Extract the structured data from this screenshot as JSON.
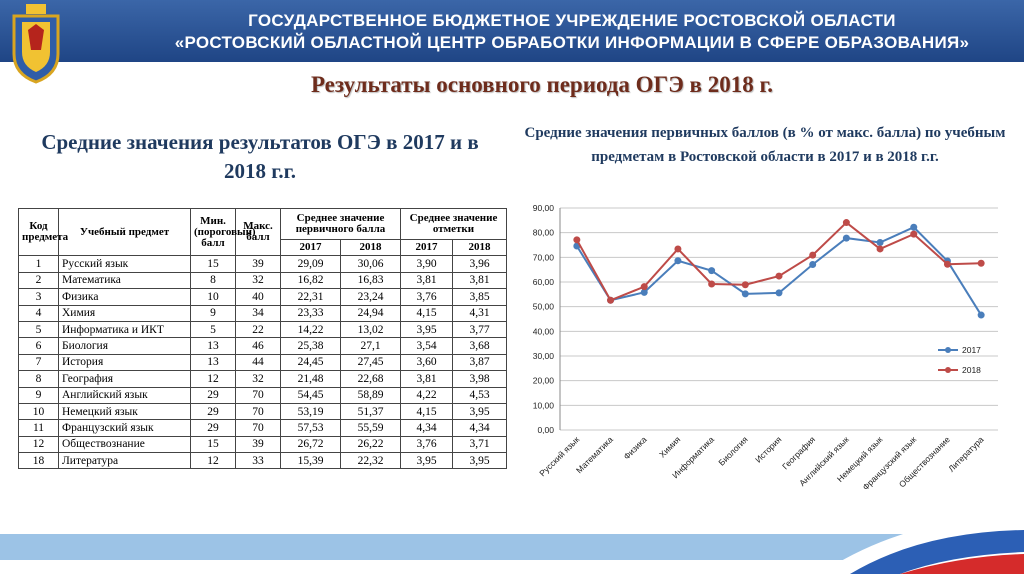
{
  "header": {
    "line1": "ГОСУДАРСТВЕННОЕ БЮДЖЕТНОЕ УЧРЕЖДЕНИЕ РОСТОВСКОЙ ОБЛАСТИ",
    "line2": "«РОСТОВСКИЙ ОБЛАСТНОЙ ЦЕНТР ОБРАБОТКИ ИНФОРМАЦИИ В СФЕРЕ ОБРАЗОВАНИЯ»"
  },
  "title": "Результаты основного периода ОГЭ в 2018 г.",
  "table_title": "Средние значения результатов ОГЭ в 2017 и в 2018 г.г.",
  "table": {
    "header": [
      "Код предмета",
      "Учебный предмет",
      "Мин. (пороговый) балл",
      "Макс. балл",
      "Среднее значение первичного балла",
      "Среднее значение отметки"
    ],
    "subheader": [
      "2017",
      "2018",
      "2017",
      "2018"
    ],
    "rows": [
      [
        "1",
        "Русский язык",
        "15",
        "39",
        "29,09",
        "30,06",
        "3,90",
        "3,96"
      ],
      [
        "2",
        "Математика",
        "8",
        "32",
        "16,82",
        "16,83",
        "3,81",
        "3,81"
      ],
      [
        "3",
        "Физика",
        "10",
        "40",
        "22,31",
        "23,24",
        "3,76",
        "3,85"
      ],
      [
        "4",
        "Химия",
        "9",
        "34",
        "23,33",
        "24,94",
        "4,15",
        "4,31"
      ],
      [
        "5",
        "Информатика и ИКТ",
        "5",
        "22",
        "14,22",
        "13,02",
        "3,95",
        "3,77"
      ],
      [
        "6",
        "Биология",
        "13",
        "46",
        "25,38",
        "27,1",
        "3,54",
        "3,68"
      ],
      [
        "7",
        "История",
        "13",
        "44",
        "24,45",
        "27,45",
        "3,60",
        "3,87"
      ],
      [
        "8",
        "География",
        "12",
        "32",
        "21,48",
        "22,68",
        "3,81",
        "3,98"
      ],
      [
        "9",
        "Английский язык",
        "29",
        "70",
        "54,45",
        "58,89",
        "4,22",
        "4,53"
      ],
      [
        "10",
        "Немецкий язык",
        "29",
        "70",
        "53,19",
        "51,37",
        "4,15",
        "3,95"
      ],
      [
        "11",
        "Французский язык",
        "29",
        "70",
        "57,53",
        "55,59",
        "4,34",
        "4,34"
      ],
      [
        "12",
        "Обществознание",
        "15",
        "39",
        "26,72",
        "26,22",
        "3,76",
        "3,71"
      ],
      [
        "18",
        "Литература",
        "12",
        "33",
        "15,39",
        "22,32",
        "3,95",
        "3,95"
      ]
    ]
  },
  "chart_data": {
    "type": "line",
    "title": "Средние значения первичных баллов (в % от макс. балла) по учебным предметам в Ростовской области в 2017 и в 2018 г.г.",
    "categories": [
      "Русский язык",
      "Математика",
      "Физика",
      "Химия",
      "Информатика",
      "Биология",
      "История",
      "География",
      "Английский язык",
      "Немецкий язык",
      "Французский язык",
      "Обществознание",
      "Литература"
    ],
    "series": [
      {
        "name": "2017",
        "color": "#4a7ebb",
        "values": [
          74.6,
          52.6,
          55.8,
          68.6,
          64.6,
          55.2,
          55.6,
          67.1,
          77.8,
          76.0,
          82.2,
          68.5,
          46.6
        ]
      },
      {
        "name": "2018",
        "color": "#be4b48",
        "values": [
          77.1,
          52.6,
          58.1,
          73.4,
          59.2,
          58.9,
          62.4,
          70.9,
          84.1,
          73.4,
          79.4,
          67.2,
          67.6
        ]
      }
    ],
    "ylim": [
      0,
      90
    ],
    "yticks": [
      {
        "value": 0,
        "label": "0,00"
      },
      {
        "value": 10,
        "label": "10,00"
      },
      {
        "value": 20,
        "label": "20,00"
      },
      {
        "value": 30,
        "label": "30,00"
      },
      {
        "value": 40,
        "label": "40,00"
      },
      {
        "value": 50,
        "label": "50,00"
      },
      {
        "value": 60,
        "label": "60,00"
      },
      {
        "value": 70,
        "label": "70,00"
      },
      {
        "value": 80,
        "label": "80,00"
      },
      {
        "value": 90,
        "label": "90,00"
      }
    ],
    "grid": true,
    "legend": "right"
  }
}
